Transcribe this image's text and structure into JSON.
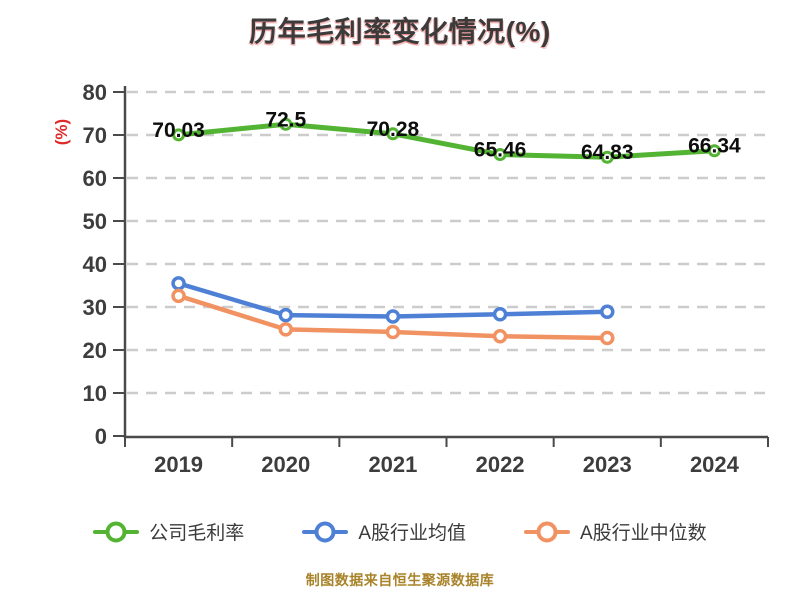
{
  "title": "历年毛利率变化情况(%)",
  "y_axis_unit": "(%)",
  "footer": "制图数据来自恒生聚源数据库",
  "colors": {
    "company": "#53b332",
    "industry_mean": "#4e80d5",
    "industry_median": "#f19263",
    "grid": "#cccccc",
    "axis": "#4a4a4a",
    "tick_label": "#3d3d3d",
    "data_label": "#0d0d0d",
    "unit_label": "#e02a2a",
    "footer_text": "#a8832a"
  },
  "legend": [
    {
      "slug": "company-gross-margin",
      "label": "公司毛利率",
      "color": "#53b332"
    },
    {
      "slug": "a-share-industry-mean",
      "label": "A股行业均值",
      "color": "#4e80d5"
    },
    {
      "slug": "a-share-industry-median",
      "label": "A股行业中位数",
      "color": "#f19263"
    }
  ],
  "chart_data": {
    "type": "line",
    "title": "历年毛利率变化情况(%)",
    "ylabel": "(%)",
    "categories": [
      "2019",
      "2020",
      "2021",
      "2022",
      "2023",
      "2024"
    ],
    "series": [
      {
        "slug": "company-gross-margin",
        "name": "公司毛利率",
        "color": "#53b332",
        "values": [
          70.03,
          72.5,
          70.28,
          65.46,
          64.83,
          66.34
        ],
        "labels": [
          "70.03",
          "72.5",
          "70.28",
          "65.46",
          "64.83",
          "66.34"
        ],
        "show_labels": true
      },
      {
        "slug": "a-share-industry-mean",
        "name": "A股行业均值",
        "color": "#4e80d5",
        "values": [
          35.5,
          28.1,
          27.8,
          28.3,
          28.9,
          null
        ],
        "labels": [],
        "show_labels": false
      },
      {
        "slug": "a-share-industry-median",
        "name": "A股行业中位数",
        "color": "#f19263",
        "values": [
          32.6,
          24.8,
          24.2,
          23.2,
          22.8,
          null
        ],
        "labels": [],
        "show_labels": false
      }
    ],
    "ylim": [
      0,
      80
    ],
    "y_tick_step": 10,
    "y_ticks": [
      0,
      10,
      20,
      30,
      40,
      50,
      60,
      70,
      80
    ],
    "grid": "horizontal-dashed",
    "legend_position": "bottom",
    "source_note": "制图数据来自恒生聚源数据库"
  }
}
